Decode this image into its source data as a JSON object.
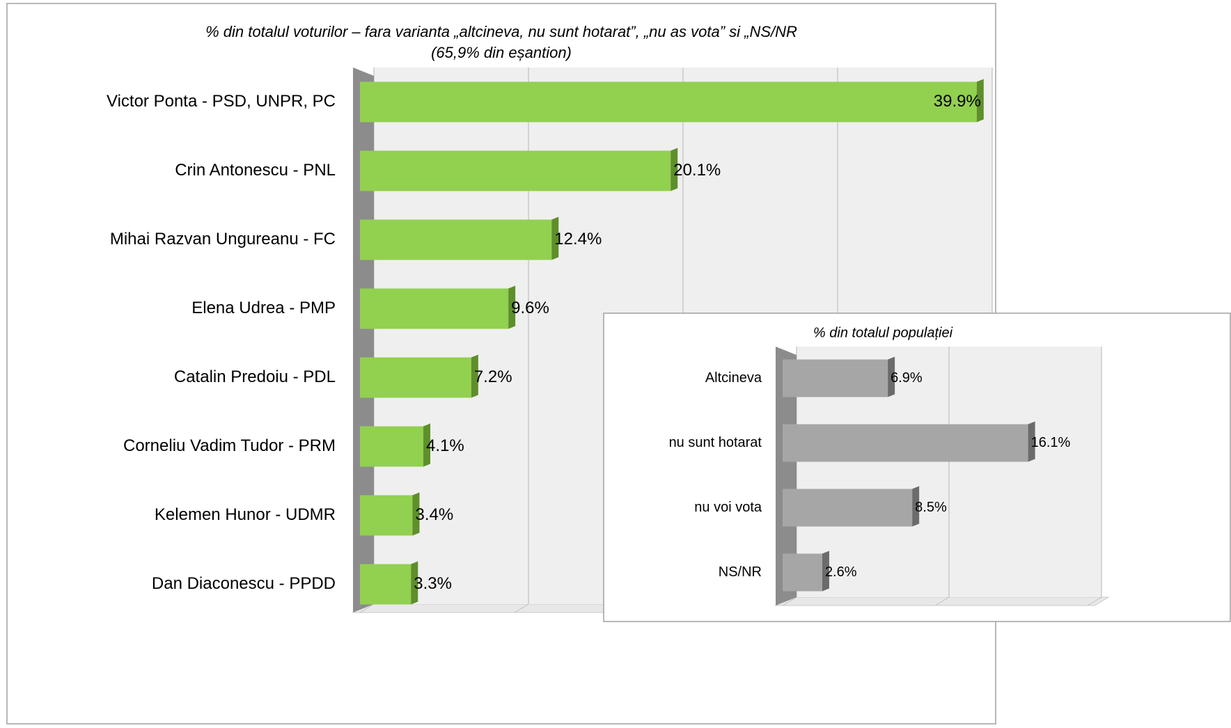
{
  "chart_data": [
    {
      "type": "bar",
      "title": "% din totalul voturilor – fara varianta „altcineva, nu sunt hotarat”, „nu as vota” si „NS/NR",
      "subtitle": "(65,9% din eșantion)",
      "categories": [
        "Victor Ponta - PSD, UNPR, PC",
        "Crin Antonescu - PNL",
        "Mihai Razvan Ungureanu - FC",
        "Elena Udrea - PMP",
        "Catalin Predoiu - PDL",
        "Corneliu Vadim Tudor - PRM",
        "Kelemen Hunor - UDMR",
        "Dan Diaconescu - PPDD"
      ],
      "values": [
        39.9,
        20.1,
        12.4,
        9.6,
        7.2,
        4.1,
        3.4,
        3.3
      ],
      "value_labels": [
        "39.9%",
        "20.1%",
        "12.4%",
        "9.6%",
        "7.2%",
        "4.1%",
        "3.4%",
        "3.3%"
      ],
      "color": "#92d050",
      "xlim": [
        0,
        40
      ],
      "xticks": [
        0,
        10,
        20,
        30,
        40
      ],
      "grid": true
    },
    {
      "type": "bar",
      "title": "% din totalul populației",
      "categories": [
        "Altcineva",
        "nu sunt hotarat",
        "nu voi vota",
        "NS/NR"
      ],
      "values": [
        6.9,
        16.1,
        8.5,
        2.6
      ],
      "value_labels": [
        "6.9%",
        "16.1%",
        "8.5%",
        "2.6%"
      ],
      "color": "#a6a6a6",
      "xlim": [
        0,
        20
      ],
      "xticks": [
        0,
        10,
        20
      ],
      "grid": true
    }
  ]
}
